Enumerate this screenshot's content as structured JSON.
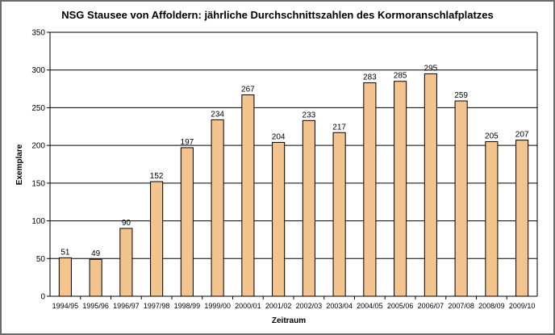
{
  "chart_data": {
    "type": "bar",
    "title": "NSG Stausee von Affoldern: jährliche Durchschnittszahlen des Kormoranschlafplatzes",
    "xlabel": "Zeitraum",
    "ylabel": "Exemplare",
    "ylim": [
      0,
      350
    ],
    "yticks": [
      0,
      50,
      100,
      150,
      200,
      250,
      300,
      350
    ],
    "grid": true,
    "legend": "none",
    "categories": [
      "1994/95",
      "1995/96",
      "1996/97",
      "1997/98",
      "1998/99",
      "1999/00",
      "2000/01",
      "2001/02",
      "2002/03",
      "2003/04",
      "2004/05",
      "2005/06",
      "2006/07",
      "2007/08",
      "2008/09",
      "2009/10"
    ],
    "values": [
      51,
      49,
      90,
      152,
      197,
      234,
      267,
      204,
      233,
      217,
      283,
      285,
      295,
      259,
      205,
      207
    ],
    "colors": {
      "bar": "#f4c48f",
      "bar_border": "#000000",
      "grid": "#000000"
    }
  }
}
